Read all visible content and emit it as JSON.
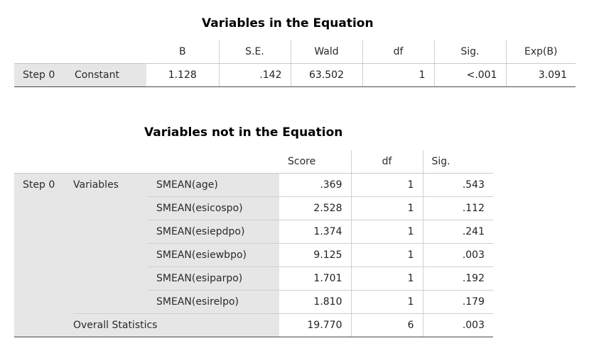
{
  "table1": {
    "title": "Variables in the Equation",
    "columns": [
      "B",
      "S.E.",
      "Wald",
      "df",
      "Sig.",
      "Exp(B)"
    ],
    "row": {
      "step": "Step 0",
      "label": "Constant",
      "values": [
        "1.128",
        ".142",
        "63.502",
        "1",
        "<.001",
        "3.091"
      ]
    }
  },
  "table2": {
    "title": "Variables not in the Equation",
    "columns": [
      "Score",
      "df",
      "Sig."
    ],
    "step": "Step 0",
    "group_label": "Variables",
    "rows": [
      {
        "name": "SMEAN(age)",
        "score": ".369",
        "df": "1",
        "sig": ".543"
      },
      {
        "name": "SMEAN(esicospo)",
        "score": "2.528",
        "df": "1",
        "sig": ".112"
      },
      {
        "name": "SMEAN(esiepdpo)",
        "score": "1.374",
        "df": "1",
        "sig": ".241"
      },
      {
        "name": "SMEAN(esiewbpo)",
        "score": "9.125",
        "df": "1",
        "sig": ".003"
      },
      {
        "name": "SMEAN(esiparpo)",
        "score": "1.701",
        "df": "1",
        "sig": ".192"
      },
      {
        "name": "SMEAN(esirelpo)",
        "score": "1.810",
        "df": "1",
        "sig": ".179"
      }
    ],
    "overall": {
      "label": "Overall Statistics",
      "score": "19.770",
      "df": "6",
      "sig": ".003"
    }
  }
}
